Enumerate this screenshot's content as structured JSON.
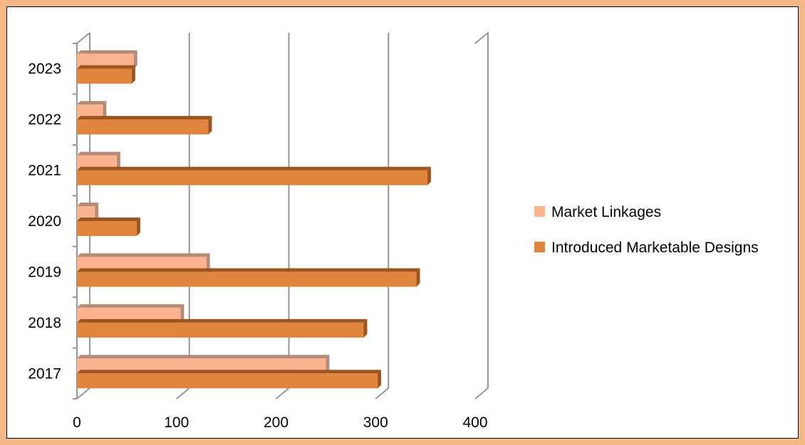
{
  "chart_data": {
    "type": "bar",
    "orientation": "horizontal",
    "style": "3d",
    "categories": [
      "2017",
      "2018",
      "2019",
      "2020",
      "2021",
      "2022",
      "2023"
    ],
    "series": [
      {
        "name": "Market Linkages",
        "values": [
          250,
          104,
          130,
          18,
          40,
          26,
          57
        ],
        "color": "#fbb48f"
      },
      {
        "name": "Introduced Marketable Designs",
        "values": [
          302,
          288,
          341,
          60,
          352,
          132,
          55
        ],
        "color": "#e0853e"
      }
    ],
    "xlim": [
      0,
      400
    ],
    "xticks": [
      "0",
      "100",
      "200",
      "300",
      "400"
    ],
    "grid": true,
    "legend": "right",
    "colors": {
      "frame": "#f5b987",
      "grid": "#969696",
      "series_dark_side": "#9c5420",
      "series_light_side": "#b58a76"
    }
  }
}
